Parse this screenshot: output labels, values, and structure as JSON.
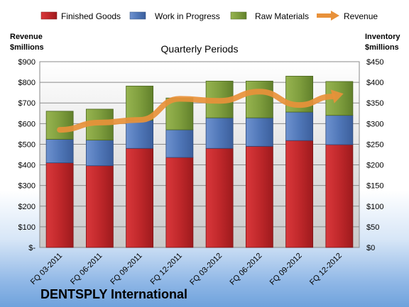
{
  "chart_data": {
    "type": "bar",
    "stacked": true,
    "title": "Quarterly Periods",
    "company": "DENTSPLY International",
    "categories": [
      "FQ 03-2011",
      "FQ 06-2011",
      "FQ 09-2011",
      "FQ 12-2011",
      "FQ 03-2012",
      "FQ 06-2012",
      "FQ 09-2012",
      "FQ 12-2012"
    ],
    "left_axis": {
      "label_line1": "Revenue",
      "label_line2": "$millions",
      "ylim": [
        0,
        900
      ],
      "ticks": [
        "$-",
        "$100",
        "$200",
        "$300",
        "$400",
        "$500",
        "$600",
        "$700",
        "$800",
        "$900"
      ]
    },
    "right_axis": {
      "label_line1": "Inventory",
      "label_line2": "$millions",
      "ylim": [
        0,
        450
      ],
      "ticks": [
        "$0",
        "$50",
        "$100",
        "$150",
        "$200",
        "$250",
        "$300",
        "$350",
        "$400",
        "$450"
      ]
    },
    "series": [
      {
        "name": "Finished Goods",
        "axis": "right",
        "color": "#c0282b",
        "values": [
          205,
          198,
          240,
          218,
          240,
          245,
          259,
          249
        ]
      },
      {
        "name": "Work in Progress",
        "axis": "right",
        "color": "#4f76b8",
        "values": [
          57,
          62,
          68,
          67,
          74,
          69,
          69,
          71
        ]
      },
      {
        "name": "Raw Materials",
        "axis": "right",
        "color": "#7a9a3a",
        "values": [
          68,
          75,
          83,
          77,
          89,
          89,
          87,
          82
        ]
      },
      {
        "name": "Revenue",
        "axis": "left",
        "type": "line",
        "color": "#e8913a",
        "values": [
          570,
          605,
          618,
          720,
          710,
          755,
          690,
          740
        ]
      }
    ],
    "grid": true,
    "legend": "top"
  }
}
